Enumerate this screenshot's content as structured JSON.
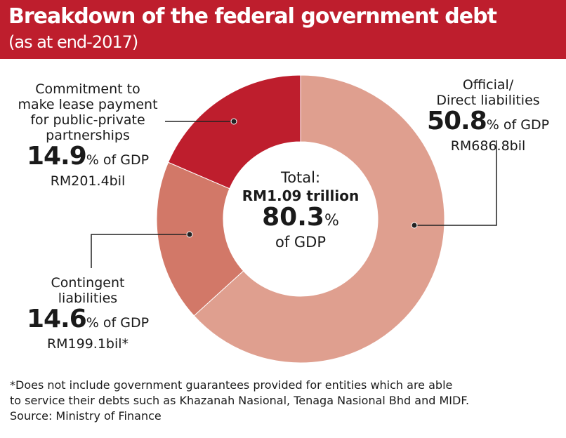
{
  "header": {
    "title": "Breakdown of the federal government debt",
    "subtitle": "(as at end-2017)"
  },
  "center": {
    "total_label": "Total:",
    "total_value": "RM1.09 trillion",
    "total_pct": "80.3",
    "pct_sign": "%",
    "of_gdp": "of GDP"
  },
  "labels": {
    "official": {
      "line1": "Official/",
      "line2": "Direct liabilities",
      "pct": "50.8",
      "suffix": "% of GDP",
      "amount": "RM686.8bil"
    },
    "commitment": {
      "line1": "Commitment to",
      "line2": "make lease payment",
      "line3": "for public-private",
      "line4": "partnerships",
      "pct": "14.9",
      "suffix": "% of GDP",
      "amount": "RM201.4bil"
    },
    "contingent": {
      "line1": "Contingent",
      "line2": "liabilities",
      "pct": "14.6",
      "suffix": "% of GDP",
      "amount": "RM199.1bil*"
    }
  },
  "footer": {
    "note1": "*Does not include government guarantees provided for entities which are able",
    "note2": "to service their debts such as Khazanah Nasional, Tenaga Nasional Bhd and MIDF.",
    "source": "Source: Ministry of Finance"
  },
  "chart_data": {
    "type": "pie",
    "donut": true,
    "title": "Breakdown of the federal government debt",
    "subtitle": "(as at end-2017)",
    "unit": "% of GDP",
    "slices": [
      {
        "name": "Official/Direct liabilities",
        "value": 50.8,
        "amount": "RM686.8bil",
        "color": "#DF9F8F"
      },
      {
        "name": "Contingent liabilities",
        "value": 14.6,
        "amount": "RM199.1bil*",
        "color": "#D27868"
      },
      {
        "name": "Commitment to make lease payment for public-private partnerships",
        "value": 14.9,
        "amount": "RM201.4bil",
        "color": "#BE1E2D"
      }
    ],
    "total": {
      "value": 80.3,
      "amount": "RM1.09 trillion"
    }
  }
}
